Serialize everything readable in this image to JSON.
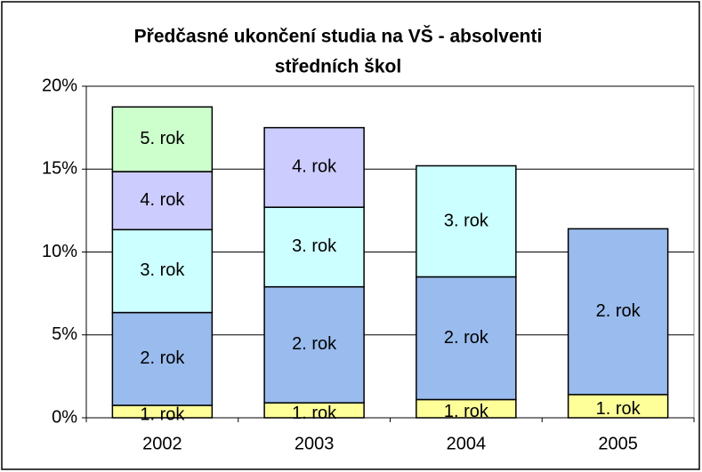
{
  "chart_data": {
    "type": "stacked_bar",
    "title": [
      "Předčasné ukončení studia na VŠ - absolventi",
      "středních škol"
    ],
    "categories": [
      "2002",
      "2003",
      "2004",
      "2005"
    ],
    "series": [
      {
        "name": "1. rok",
        "color": "#ffff99",
        "values": [
          0.75,
          0.9,
          1.1,
          1.4
        ]
      },
      {
        "name": "2. rok",
        "color": "#99bbee",
        "values": [
          5.6,
          7.0,
          7.4,
          10.0
        ]
      },
      {
        "name": "3. rok",
        "color": "#ccffff",
        "values": [
          5.0,
          4.8,
          6.7,
          null
        ]
      },
      {
        "name": "4. rok",
        "color": "#ccccff",
        "values": [
          3.5,
          4.8,
          null,
          null
        ]
      },
      {
        "name": "5. rok",
        "color": "#ccffcc",
        "values": [
          3.9,
          null,
          null,
          null
        ]
      }
    ],
    "ylim": [
      0,
      20
    ],
    "yticks": [
      {
        "value": 0,
        "label": "0%"
      },
      {
        "value": 5,
        "label": "5%"
      },
      {
        "value": 10,
        "label": "10%"
      },
      {
        "value": 15,
        "label": "15%"
      },
      {
        "value": 20,
        "label": "20%"
      }
    ],
    "grid": true
  }
}
